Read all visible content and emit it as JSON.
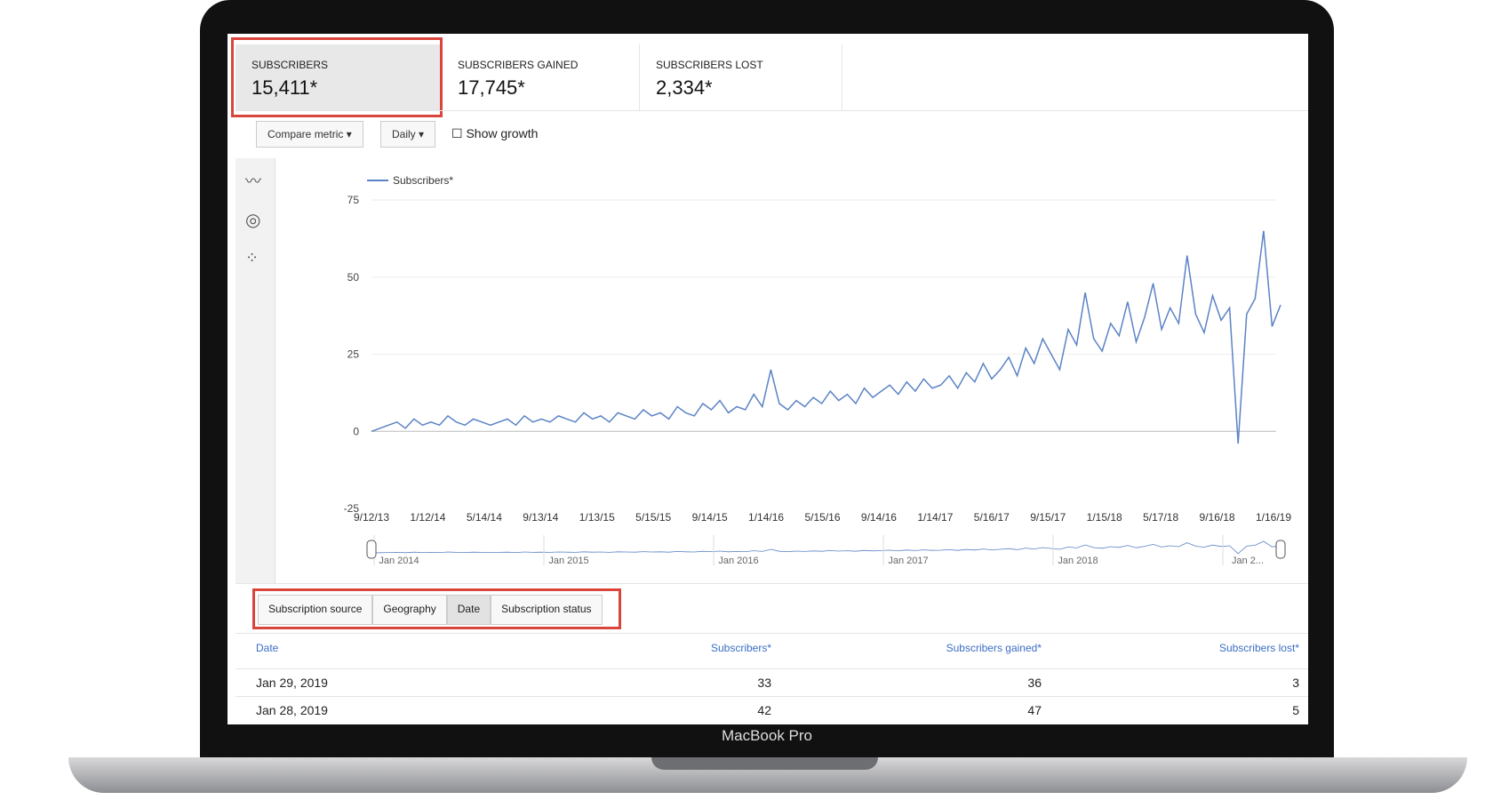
{
  "cards": [
    {
      "label": "SUBSCRIBERS",
      "value": "15,411*"
    },
    {
      "label": "SUBSCRIBERS GAINED",
      "value": "17,745*"
    },
    {
      "label": "SUBSCRIBERS LOST",
      "value": "2,334*"
    }
  ],
  "controls": {
    "compare": "Compare metric",
    "interval": "Daily",
    "growth": "Show growth"
  },
  "chart_data": {
    "type": "line",
    "x_labels": [
      "9/12/13",
      "1/12/14",
      "5/14/14",
      "9/13/14",
      "1/13/15",
      "5/15/15",
      "9/14/15",
      "1/14/16",
      "5/15/16",
      "9/14/16",
      "1/14/17",
      "5/16/17",
      "9/15/17",
      "1/15/18",
      "5/17/18",
      "9/16/18",
      "1/16/19"
    ],
    "series": [
      {
        "name": "Subscribers*",
        "color": "#5b83c5",
        "values": [
          0,
          1,
          2,
          3,
          1,
          4,
          2,
          3,
          2,
          5,
          3,
          2,
          4,
          3,
          2,
          3,
          4,
          2,
          5,
          3,
          4,
          3,
          5,
          4,
          3,
          6,
          4,
          5,
          3,
          6,
          5,
          4,
          7,
          5,
          6,
          4,
          8,
          6,
          5,
          9,
          7,
          10,
          6,
          8,
          7,
          12,
          8,
          20,
          9,
          7,
          10,
          8,
          11,
          9,
          13,
          10,
          12,
          9,
          14,
          11,
          13,
          15,
          12,
          16,
          13,
          17,
          14,
          15,
          18,
          14,
          19,
          16,
          22,
          17,
          20,
          24,
          18,
          27,
          22,
          30,
          25,
          20,
          33,
          28,
          45,
          30,
          26,
          35,
          31,
          42,
          29,
          37,
          48,
          33,
          40,
          35,
          57,
          38,
          32,
          44,
          36,
          40,
          -4,
          38,
          43,
          65,
          34,
          41
        ]
      }
    ],
    "ylim": [
      -25,
      75
    ],
    "yticks": [
      -25,
      0,
      25,
      50,
      75
    ],
    "grid": true,
    "navigator_labels": [
      "Jan 2014",
      "Jan 2015",
      "Jan 2016",
      "Jan 2017",
      "Jan 2018",
      "Jan 2..."
    ]
  },
  "tabs": [
    "Subscription source",
    "Geography",
    "Date",
    "Subscription status"
  ],
  "table": {
    "columns": [
      "Date",
      "Subscribers*",
      "Subscribers gained*",
      "Subscribers lost*"
    ],
    "rows": [
      [
        "Jan 29, 2019",
        33,
        36,
        3
      ],
      [
        "Jan 28, 2019",
        42,
        47,
        5
      ]
    ]
  },
  "device": "MacBook Pro"
}
